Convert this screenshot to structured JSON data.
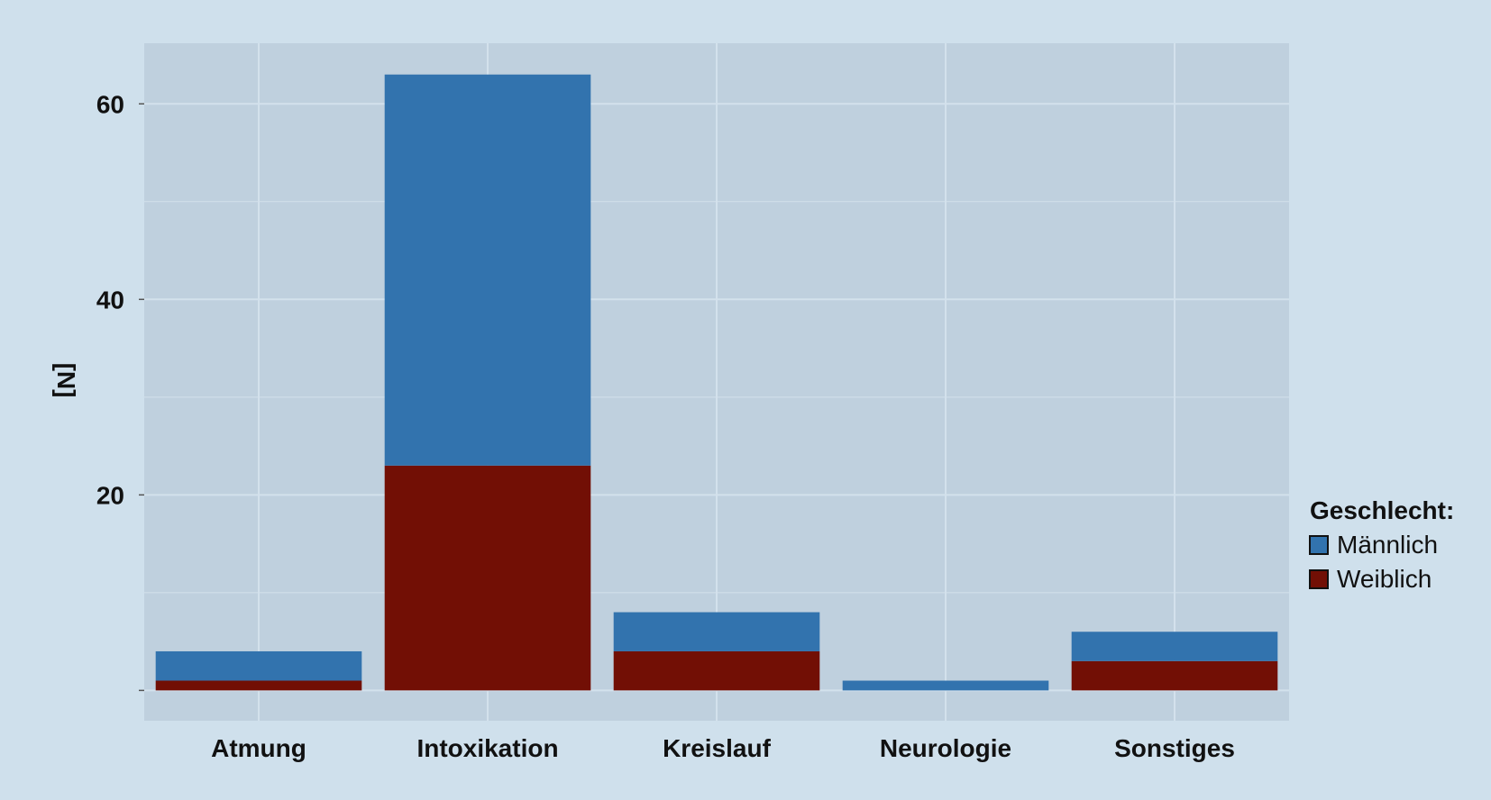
{
  "chart_data": {
    "type": "bar",
    "stacked": true,
    "categories": [
      "Atmung",
      "Intoxikation",
      "Kreislauf",
      "Neurologie",
      "Sonstiges"
    ],
    "series": [
      {
        "name": "Weiblich",
        "color": "#720f05",
        "values": [
          1,
          23,
          4,
          0,
          3
        ]
      },
      {
        "name": "Männlich",
        "color": "#3273ae",
        "values": [
          3,
          40,
          4,
          1,
          3
        ]
      }
    ],
    "title": "",
    "xlabel": "",
    "ylabel": "[N]",
    "ylim": [
      -3.1,
      66.2
    ],
    "yticks": [
      20,
      40,
      60
    ],
    "grid": true,
    "legend": {
      "title": "Geschlecht:",
      "position": "right",
      "order": [
        "Männlich",
        "Weiblich"
      ]
    },
    "colors": {
      "background": "#cfe0ec",
      "panel": "#bfd0de",
      "grid": "#d3e1ec"
    }
  }
}
